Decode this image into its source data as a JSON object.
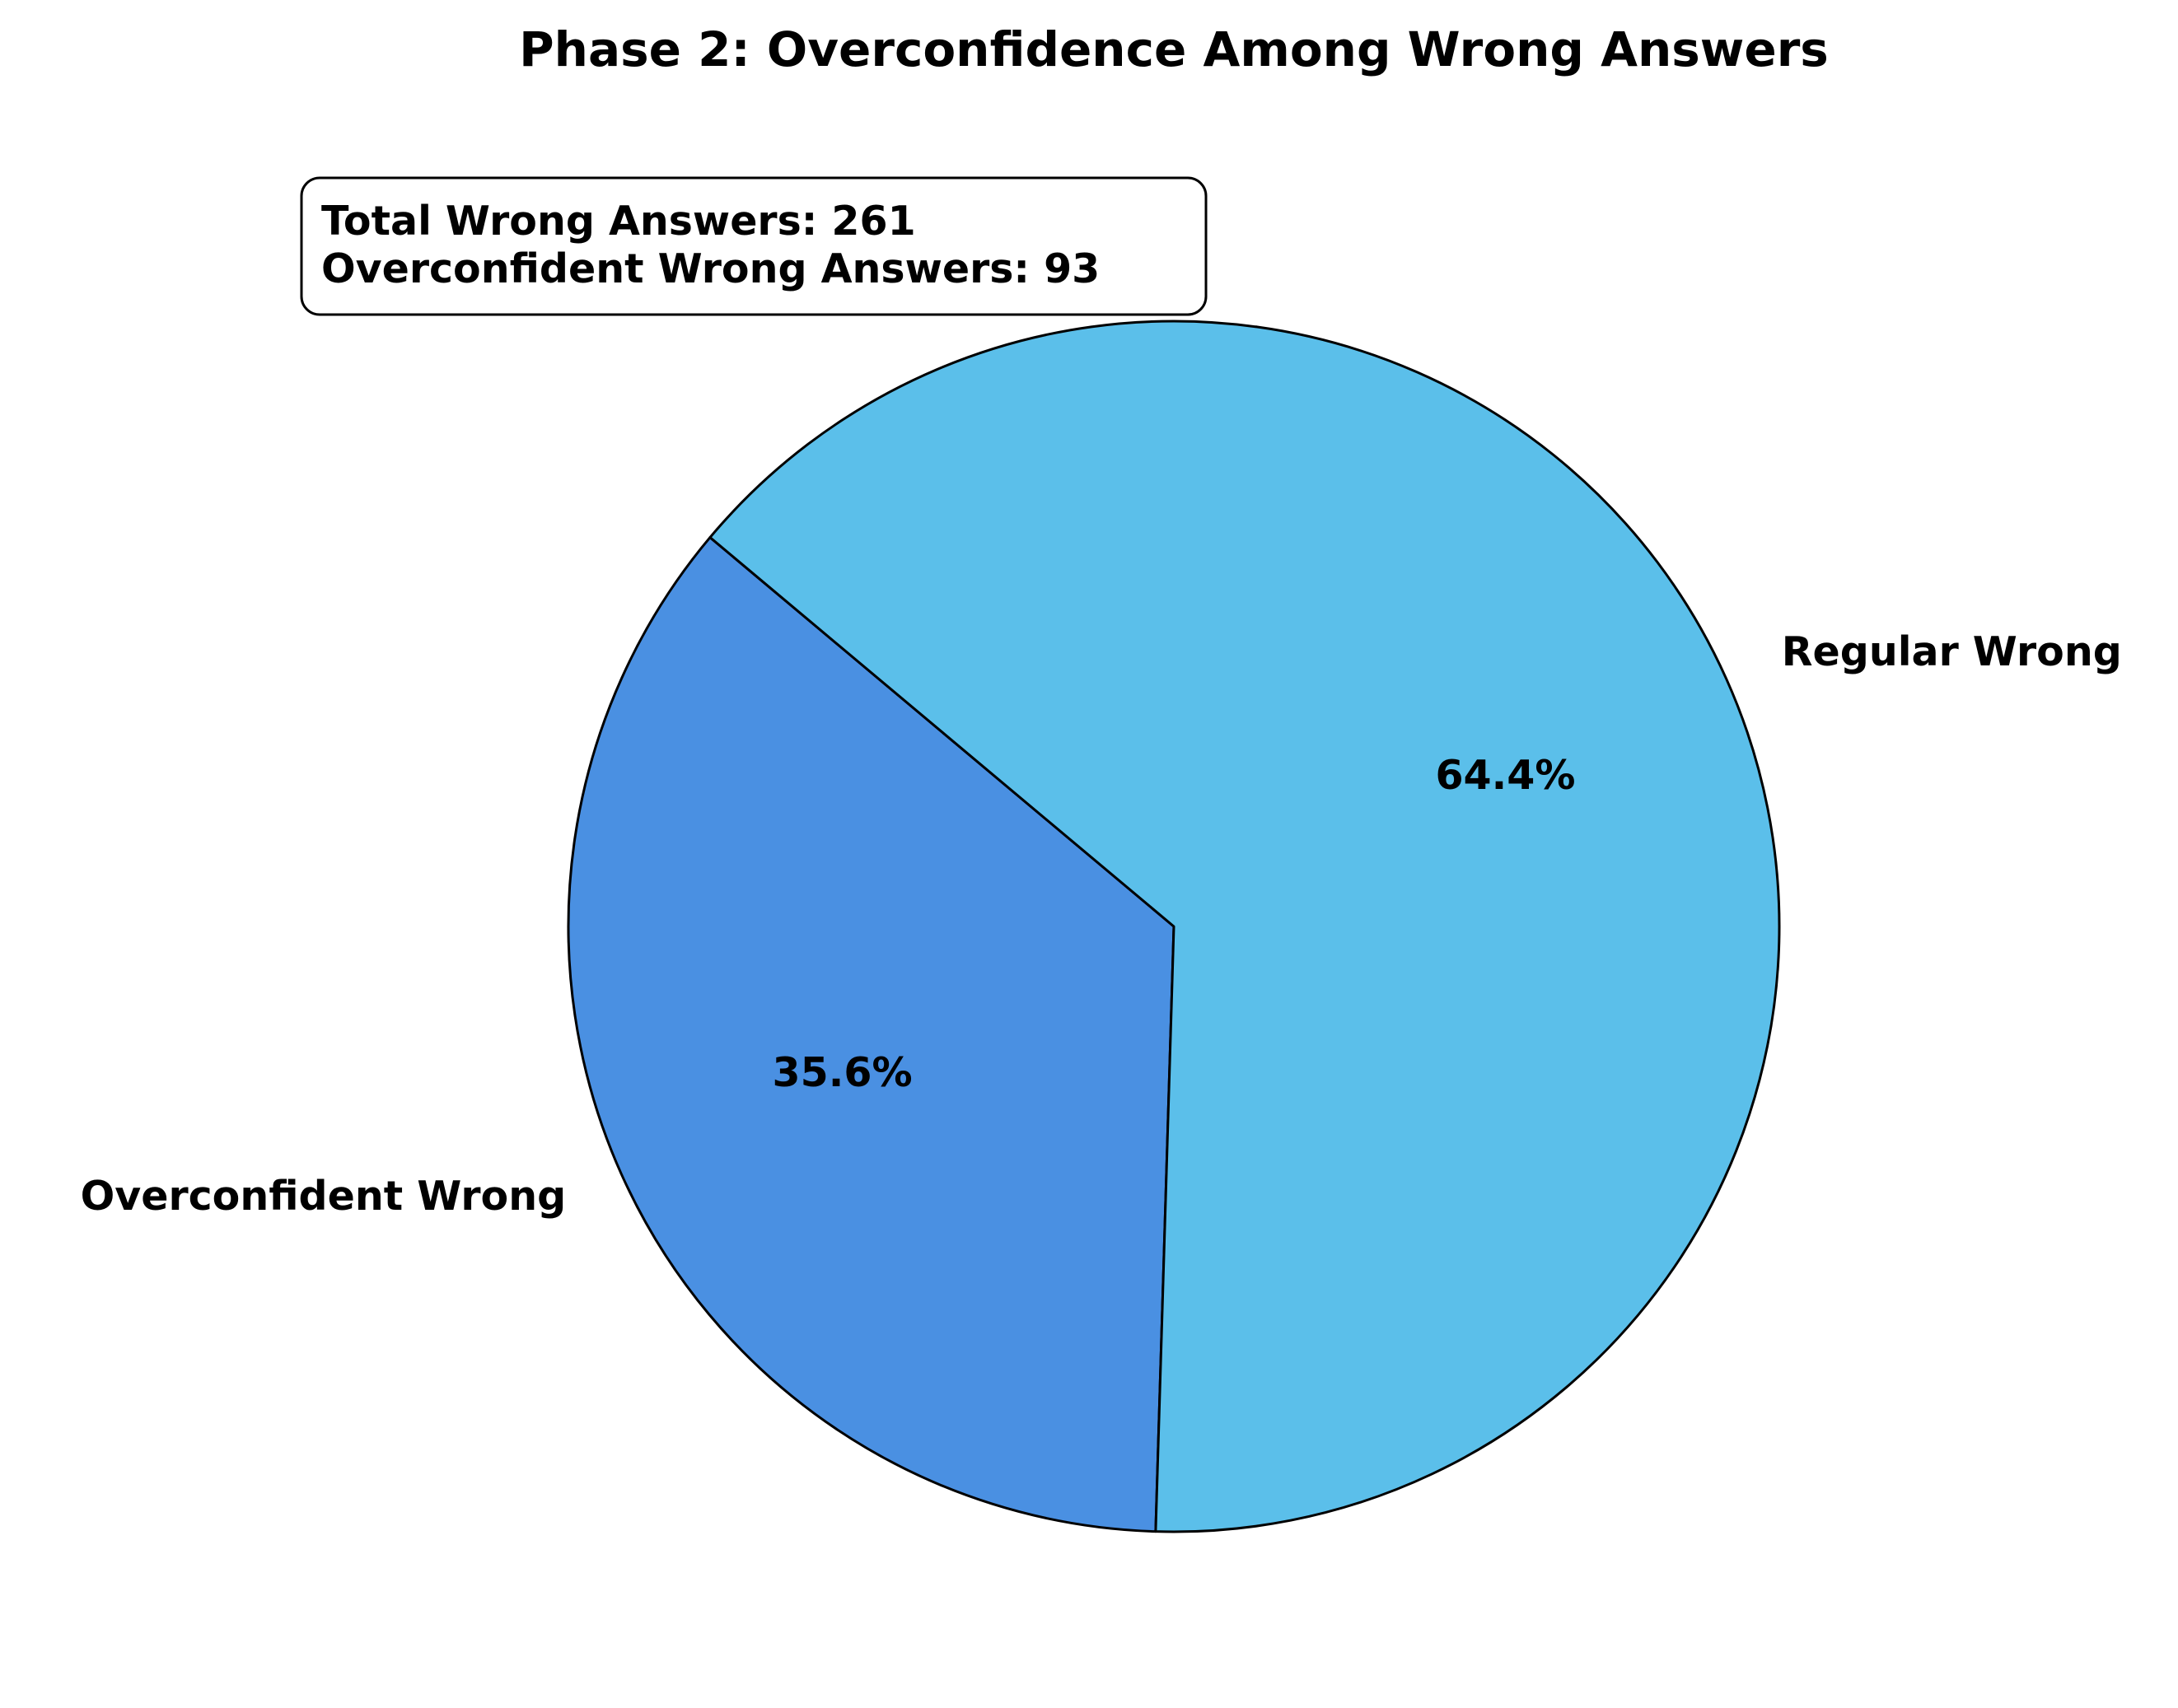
{
  "chart_data": {
    "type": "pie",
    "title": "Phase 2: Overconfidence Among Wrong Answers",
    "categories": [
      "Overconfident Wrong",
      "Regular Wrong"
    ],
    "values": [
      93,
      168
    ],
    "percent_labels": [
      "35.6%",
      "64.4%"
    ],
    "colors": [
      "#4a90e2",
      "#5bbfea"
    ],
    "edge_color": "#000000",
    "annotation": {
      "lines": [
        "Total Wrong Answers: 261",
        "Overconfident Wrong Answers: 93"
      ],
      "placement": "top-left"
    },
    "legend": false
  }
}
